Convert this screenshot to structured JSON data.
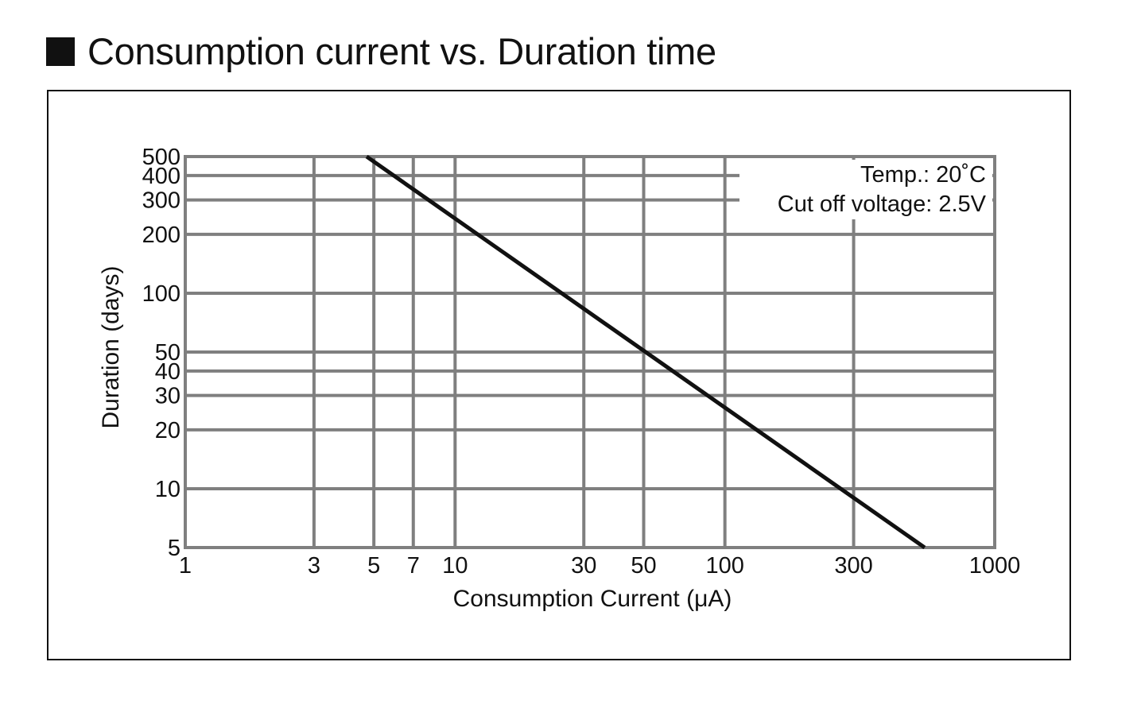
{
  "heading": {
    "title": "Consumption current vs. Duration time"
  },
  "chart_data": {
    "type": "line",
    "title": "Consumption current vs. Duration time",
    "xlabel": "Consumption Current (μA)",
    "ylabel": "Duration (days)",
    "x_scale": "log",
    "y_scale": "log",
    "xlim": [
      1,
      1000
    ],
    "ylim": [
      5,
      500
    ],
    "x_ticks": [
      1,
      3,
      5,
      7,
      10,
      30,
      50,
      100,
      300,
      1000
    ],
    "x_tick_labels": [
      "1",
      "3",
      "5",
      "7",
      "10",
      "30",
      "50",
      "100",
      "300",
      "1000"
    ],
    "y_ticks": [
      5,
      10,
      20,
      30,
      40,
      50,
      100,
      200,
      300,
      400,
      500
    ],
    "y_tick_labels": [
      "5",
      "10",
      "20",
      "30",
      "40",
      "50",
      "100",
      "200",
      "300",
      "400",
      "500"
    ],
    "grid": true,
    "series": [
      {
        "x": [
          4.7,
          550
        ],
        "y": [
          500,
          5
        ]
      }
    ],
    "annotations": [
      "Temp.: 20˚C",
      "Cut off voltage: 2.5V"
    ],
    "annotation_placement": "top-right",
    "colors": {
      "line": "#111111",
      "grid": "#7f7f7f"
    }
  }
}
